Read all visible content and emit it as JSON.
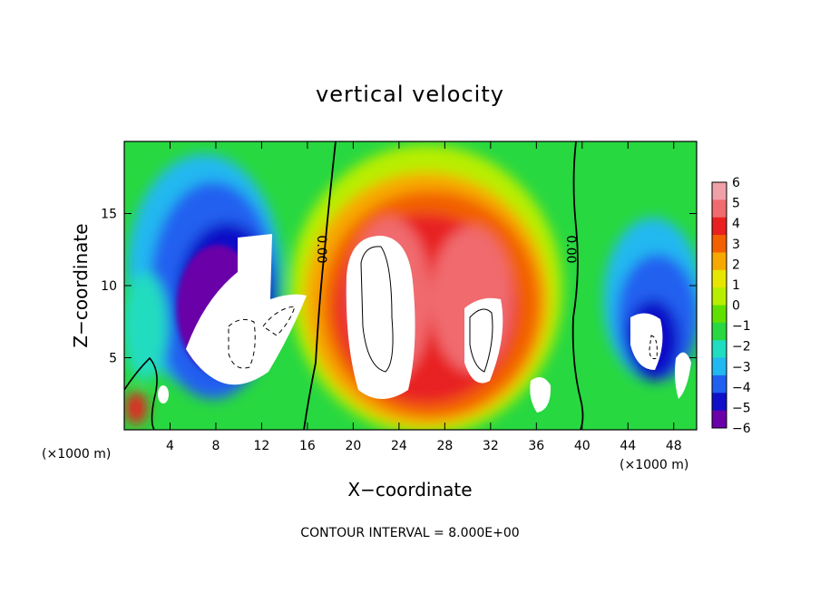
{
  "chart_data": {
    "type": "heatmap",
    "title": "vertical velocity",
    "xlabel": "X−coordinate",
    "ylabel": "Z−coordinate",
    "x_unit": "(×1000 m)",
    "z_unit": "(×1000 m)",
    "footer": "CONTOUR INTERVAL = 8.000E+00",
    "xlim": [
      0,
      50
    ],
    "ylim": [
      0,
      20
    ],
    "x_ticks": [
      4,
      8,
      12,
      16,
      20,
      24,
      28,
      32,
      36,
      40,
      44,
      48
    ],
    "y_ticks": [
      5,
      10,
      15
    ],
    "colorbar": {
      "range": [
        -6,
        6
      ],
      "ticks": [
        "6",
        "5",
        "4",
        "3",
        "2",
        "1",
        "0",
        "−1",
        "−2",
        "−3",
        "−4",
        "−5",
        "−6"
      ],
      "colors": [
        "#f0a0a8",
        "#f06a6e",
        "#e82020",
        "#f26000",
        "#f7a800",
        "#e6e600",
        "#b8ee00",
        "#60e000",
        "#28d840",
        "#20dcc0",
        "#20b8f0",
        "#2060f0",
        "#1010c8",
        "#6a00a8"
      ]
    },
    "contour_labels": [
      "0.00",
      "0.00"
    ],
    "features": [
      {
        "label": "downdraft",
        "x_center": 10,
        "z_center": 9,
        "value": -7
      },
      {
        "label": "updraft",
        "x_center": 24,
        "z_center": 10,
        "value": 9
      },
      {
        "label": "updraft",
        "x_center": 31,
        "z_center": 7,
        "value": 8
      },
      {
        "label": "downdraft",
        "x_center": 46,
        "z_center": 6,
        "value": -6
      }
    ]
  }
}
